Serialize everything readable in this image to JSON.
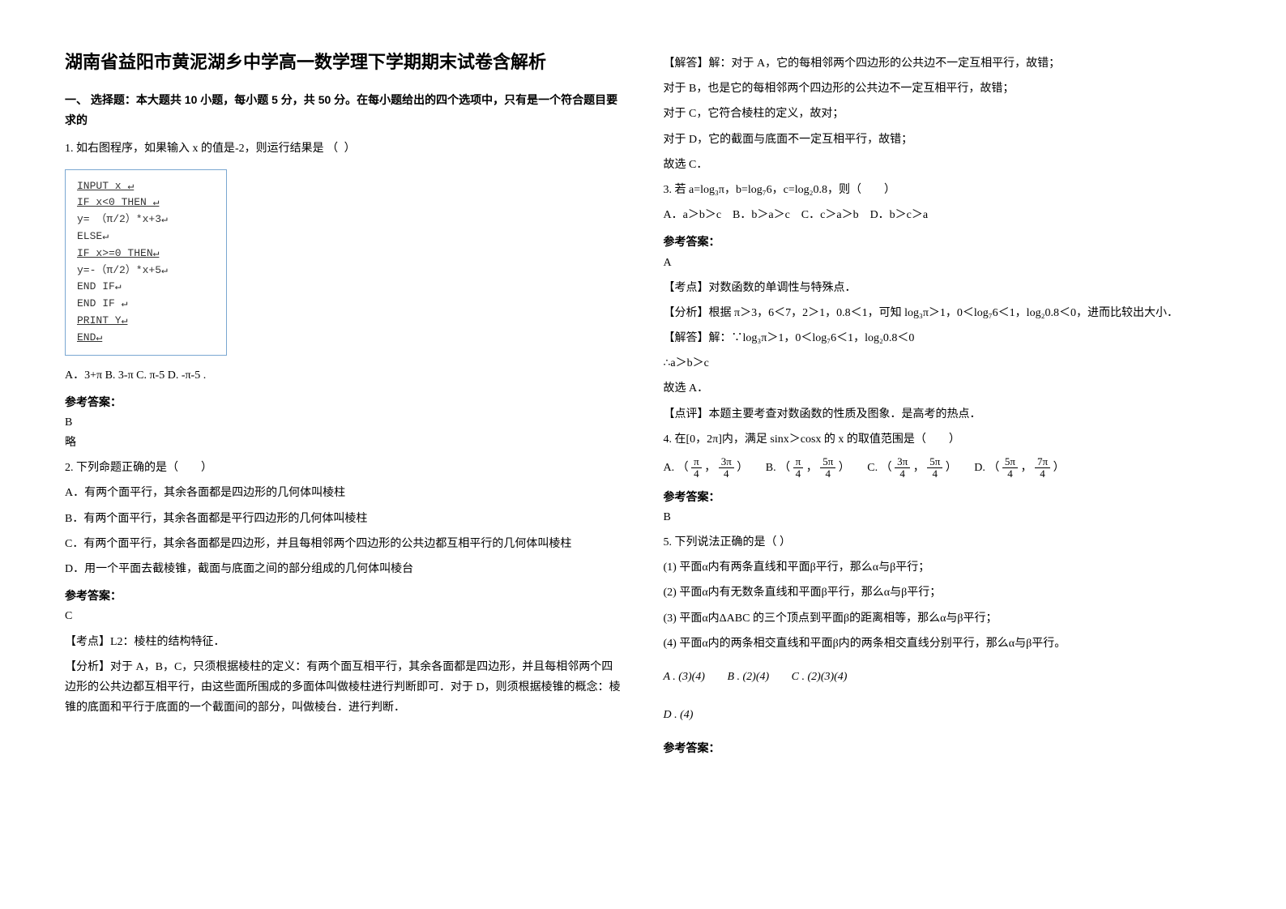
{
  "colors": {
    "text": "#000000",
    "bg": "#ffffff",
    "box_border": "#7aa7d1"
  },
  "fonts": {
    "body": "SimSun",
    "heading": "SimHei",
    "mono": "Courier New",
    "base_size": 14,
    "title_size": 22
  },
  "title": "湖南省益阳市黄泥湖乡中学高一数学理下学期期末试卷含解析",
  "section1_heading": "一、 选择题：本大题共 10 小题，每小题 5 分，共 50 分。在每小题给出的四个选项中，只有是一个符合题目要求的",
  "q1": {
    "prompt": "1. 如右图程序，如果输入 x 的值是-2，则运行结果是",
    "paren": "（        ）",
    "code": {
      "l1": "INPUT   x ↵",
      "l2": "IF   x<0   THEN ↵",
      "l3": "   y= （π/2）*x+3↵",
      "l4": "   ELSE↵",
      "l5": "   IF x>=0   THEN↵",
      "l6": "   y=-（π/2）*x+5↵",
      "l7": "   END IF↵",
      "l8": "END IF ↵",
      "l9": "   PRINT   Y↵",
      "l10": "END↵"
    },
    "opts_line": "A．3+π   B. 3-π   C. π-5   D. -π-5 .",
    "answer_label": "参考答案：",
    "answer": "B",
    "note": "略"
  },
  "q2": {
    "prompt": "2. 下列命题正确的是（　　）",
    "oA": "A．有两个面平行，其余各面都是四边形的几何体叫棱柱",
    "oB": "B．有两个面平行，其余各面都是平行四边形的几何体叫棱柱",
    "oC": "C．有两个面平行，其余各面都是四边形，并且每相邻两个四边形的公共边都互相平行的几何体叫棱柱",
    "oD": "D．用一个平面去截棱锥，截面与底面之间的部分组成的几何体叫棱台",
    "answer_label": "参考答案：",
    "answer": "C",
    "kaodian_label": "【考点】",
    "kaodian": "L2：棱柱的结构特征．",
    "fenxi_label": "【分析】",
    "fenxi": "对于 A，B，C，只须根据棱柱的定义：有两个面互相平行，其余各面都是四边形，并且每相邻两个四边形的公共边都互相平行，由这些面所围成的多面体叫做棱柱进行判断即可．对于 D，则须根据棱锥的概念：棱锥的底面和平行于底面的一个截面间的部分，叫做棱台．进行判断．",
    "jieda_label": "【解答】",
    "jieda_a": "解：对于 A，它的每相邻两个四边形的公共边不一定互相平行，故错；",
    "jieda_b": "对于 B，也是它的每相邻两个四边形的公共边不一定互相平行，故错；",
    "jieda_c": "对于 C，它符合棱柱的定义，故对；",
    "jieda_d": "对于 D，它的截面与底面不一定互相平行，故错；",
    "jieda_e": "故选 C．"
  },
  "q3": {
    "prompt": "3. 若 a=log₃π，b=log₇6，c=log₂0.8，则（　　）",
    "opts": "A．a＞b＞c　B．b＞a＞c　C．c＞a＞b　D．b＞c＞a",
    "answer_label": "参考答案：",
    "answer": "A",
    "kaodian_label": "【考点】",
    "kaodian": "对数函数的单调性与特殊点．",
    "fenxi_label": "【分析】",
    "fenxi": "根据 π＞3，6＜7，2＞1，0.8＜1，可知 log₃π＞1，0＜log₇6＜1，log₂0.8＜0，进而比较出大小．",
    "jieda_label": "【解答】",
    "jieda1": "解：∵log₃π＞1，0＜log₇6＜1，log₂0.8＜0",
    "jieda2": "∴a＞b＞c",
    "jieda3": "故选 A．",
    "dianping_label": "【点评】",
    "dianping": "本题主要考查对数函数的性质及图象．是高考的热点．"
  },
  "q4": {
    "prompt": "4. 在[0，2π]内，满足 sinx＞cosx 的 x 的取值范围是（　　）",
    "oA_label": "A. （",
    "oA_a_num": "π",
    "oA_a_den": "4",
    "comma": "，",
    "oA_b_num": "3π",
    "oA_b_den": "4",
    "close": "）",
    "oB_label": "B. （",
    "oB_a_num": "π",
    "oB_a_den": "4",
    "oB_b_num": "5π",
    "oB_b_den": "4",
    "oC_label": "C. （",
    "oC_a_num": "3π",
    "oC_a_den": "4",
    "oC_b_num": "5π",
    "oC_b_den": "4",
    "oD_label": "D. （",
    "oD_a_num": "5π",
    "oD_a_den": "4",
    "oD_b_num": "7π",
    "oD_b_den": "4",
    "answer_label": "参考答案：",
    "answer": "B"
  },
  "q5": {
    "prompt": "5. 下列说法正确的是（ ）",
    "s1": "(1) 平面α内有两条直线和平面β平行，那么α与β平行；",
    "s2": "(2) 平面α内有无数条直线和平面β平行，那么α与β平行；",
    "s3": "(3) 平面α内ΔABC 的三个顶点到平面β的距离相等，那么α与β平行；",
    "s4": "(4) 平面α内的两条相交直线和平面β内的两条相交直线分别平行，那么α与β平行。",
    "oA": "A . (3)(4)",
    "oB": "B . (2)(4)",
    "oC": "C . (2)(3)(4)",
    "oD": "D . (4)",
    "answer_label": "参考答案："
  }
}
